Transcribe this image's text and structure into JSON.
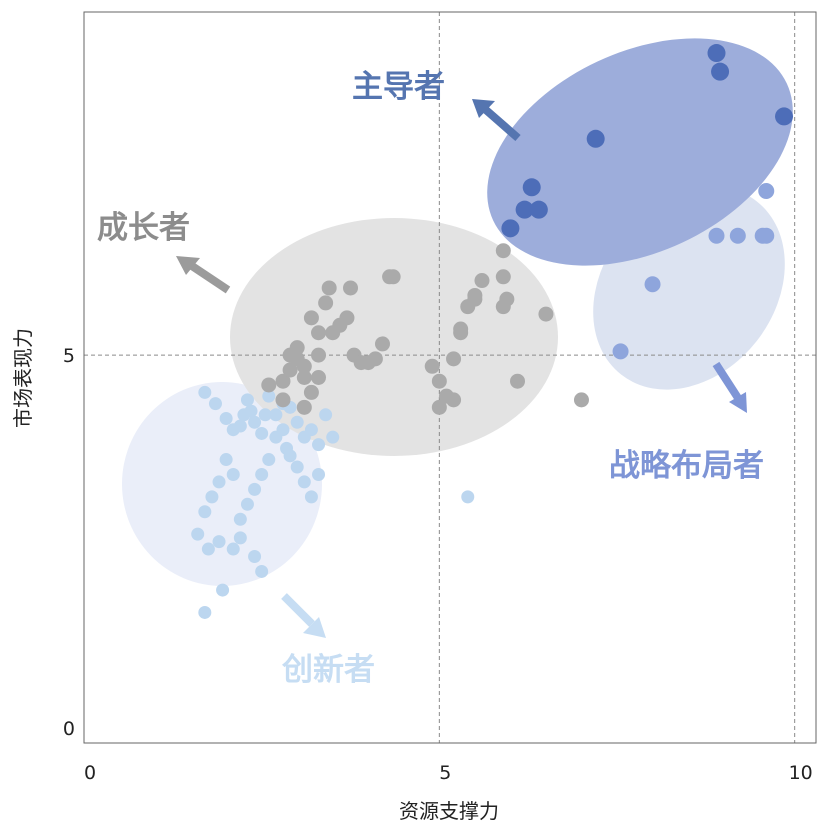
{
  "chart_data": {
    "type": "scatter",
    "xlabel": "资源支撑力",
    "ylabel": "市场表现力",
    "xlim": [
      0,
      10.3
    ],
    "ylim": [
      -0.2,
      9.6
    ],
    "x_ticks": [
      {
        "value": 0,
        "label": "0"
      },
      {
        "value": 5,
        "label": "5"
      },
      {
        "value": 10,
        "label": "10"
      }
    ],
    "y_ticks": [
      {
        "value": 0,
        "label": "0"
      },
      {
        "value": 5,
        "label": "5"
      }
    ],
    "reference_lines": {
      "x": [
        5,
        10
      ],
      "y": [
        5
      ],
      "style": "dashed"
    },
    "series": [
      {
        "name": "主导者",
        "color": "#4d6db8",
        "label_color": "#5575b0",
        "region_color": "#9daddb",
        "points": [
          [
            6.0,
            6.7
          ],
          [
            6.2,
            6.95
          ],
          [
            6.3,
            7.25
          ],
          [
            6.4,
            6.95
          ],
          [
            7.2,
            7.9
          ],
          [
            8.9,
            9.05
          ],
          [
            8.95,
            8.8
          ],
          [
            9.85,
            8.2
          ]
        ]
      },
      {
        "name": "战略布局者",
        "color": "#8ea5dc",
        "label_color": "#7e95d6",
        "region_color": "#dce3f1",
        "points": [
          [
            7.55,
            5.05
          ],
          [
            8.0,
            5.95
          ],
          [
            8.9,
            6.6
          ],
          [
            9.2,
            6.6
          ],
          [
            9.55,
            6.6
          ],
          [
            9.6,
            6.6
          ],
          [
            9.6,
            7.2
          ]
        ]
      },
      {
        "name": "成长者",
        "color": "#aaaaaa",
        "label_color": "#8c8c8c",
        "region_color": "#e3e3e3",
        "points": [
          [
            2.6,
            4.6
          ],
          [
            2.8,
            4.4
          ],
          [
            2.8,
            4.65
          ],
          [
            2.9,
            4.8
          ],
          [
            3.0,
            4.95
          ],
          [
            3.0,
            5.1
          ],
          [
            3.1,
            4.7
          ],
          [
            3.2,
            4.5
          ],
          [
            3.3,
            5.0
          ],
          [
            3.2,
            5.5
          ],
          [
            3.3,
            5.3
          ],
          [
            3.4,
            5.7
          ],
          [
            3.45,
            5.9
          ],
          [
            3.5,
            5.3
          ],
          [
            3.6,
            5.4
          ],
          [
            3.7,
            5.5
          ],
          [
            3.75,
            5.9
          ],
          [
            3.8,
            5.0
          ],
          [
            3.9,
            4.9
          ],
          [
            4.0,
            4.9
          ],
          [
            4.1,
            4.95
          ],
          [
            4.2,
            5.15
          ],
          [
            4.3,
            6.05
          ],
          [
            4.35,
            6.05
          ],
          [
            5.0,
            4.65
          ],
          [
            5.1,
            4.45
          ],
          [
            5.2,
            4.95
          ],
          [
            5.3,
            5.3
          ],
          [
            5.3,
            5.35
          ],
          [
            5.4,
            5.65
          ],
          [
            5.5,
            5.75
          ],
          [
            5.5,
            5.8
          ],
          [
            5.6,
            6.0
          ],
          [
            5.0,
            4.3
          ],
          [
            5.2,
            4.4
          ],
          [
            4.9,
            4.85
          ],
          [
            5.9,
            6.05
          ],
          [
            5.9,
            6.4
          ],
          [
            5.9,
            5.65
          ],
          [
            5.95,
            5.75
          ],
          [
            6.1,
            4.65
          ],
          [
            6.5,
            5.55
          ],
          [
            7.0,
            4.4
          ],
          [
            2.9,
            5.0
          ],
          [
            3.1,
            4.85
          ],
          [
            3.1,
            4.3
          ],
          [
            3.3,
            4.7
          ]
        ]
      },
      {
        "name": "创新者",
        "color": "#bcd6ef",
        "label_color": "#c6ddf3",
        "region_color": "#eaeef9",
        "points": [
          [
            1.7,
            4.5
          ],
          [
            1.85,
            4.35
          ],
          [
            2.0,
            4.15
          ],
          [
            2.1,
            4.0
          ],
          [
            2.2,
            4.05
          ],
          [
            2.25,
            4.2
          ],
          [
            2.3,
            4.4
          ],
          [
            2.35,
            4.25
          ],
          [
            2.4,
            4.1
          ],
          [
            2.5,
            3.95
          ],
          [
            2.55,
            4.2
          ],
          [
            2.6,
            4.45
          ],
          [
            2.7,
            4.2
          ],
          [
            2.8,
            4.0
          ],
          [
            2.85,
            3.75
          ],
          [
            2.9,
            3.65
          ],
          [
            3.0,
            3.5
          ],
          [
            3.1,
            3.3
          ],
          [
            3.2,
            3.1
          ],
          [
            3.3,
            3.4
          ],
          [
            3.5,
            3.9
          ],
          [
            3.4,
            4.2
          ],
          [
            3.3,
            3.8
          ],
          [
            3.2,
            4.0
          ],
          [
            3.1,
            3.9
          ],
          [
            3.0,
            4.1
          ],
          [
            2.9,
            4.3
          ],
          [
            2.8,
            4.35
          ],
          [
            2.7,
            3.9
          ],
          [
            2.6,
            3.6
          ],
          [
            2.5,
            3.4
          ],
          [
            2.4,
            3.2
          ],
          [
            2.3,
            3.0
          ],
          [
            2.2,
            2.8
          ],
          [
            2.1,
            3.4
          ],
          [
            2.0,
            3.6
          ],
          [
            1.9,
            3.3
          ],
          [
            1.8,
            3.1
          ],
          [
            1.7,
            2.9
          ],
          [
            1.6,
            2.6
          ],
          [
            1.75,
            2.4
          ],
          [
            1.9,
            2.5
          ],
          [
            2.1,
            2.4
          ],
          [
            2.2,
            2.55
          ],
          [
            2.4,
            2.3
          ],
          [
            2.5,
            2.1
          ],
          [
            1.95,
            1.85
          ],
          [
            1.7,
            1.55
          ],
          [
            5.4,
            3.1
          ]
        ]
      }
    ]
  }
}
